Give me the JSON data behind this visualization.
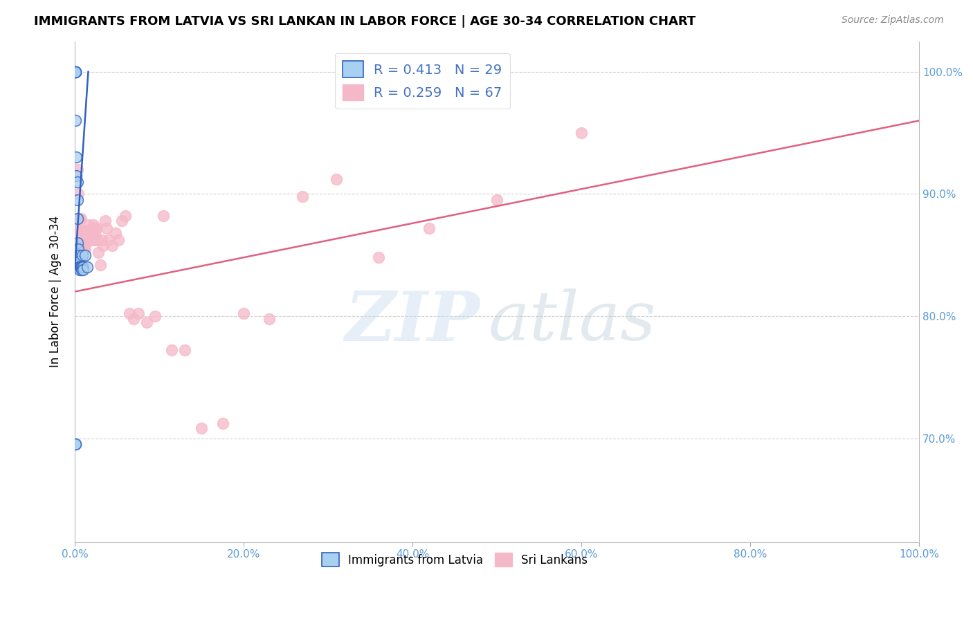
{
  "title": "IMMIGRANTS FROM LATVIA VS SRI LANKAN IN LABOR FORCE | AGE 30-34 CORRELATION CHART",
  "source": "Source: ZipAtlas.com",
  "ylabel": "In Labor Force | Age 30-34",
  "y_ticks": [
    0.7,
    0.8,
    0.9,
    1.0
  ],
  "y_tick_labels": [
    "70.0%",
    "80.0%",
    "90.0%",
    "100.0%"
  ],
  "x_ticks": [
    0.0,
    0.2,
    0.4,
    0.6,
    0.8,
    1.0
  ],
  "xlim": [
    0.0,
    1.0
  ],
  "ylim": [
    0.615,
    1.025
  ],
  "color_latvia": "#A8D0F0",
  "color_srilanka": "#F5B8C8",
  "color_line_latvia": "#3060C0",
  "color_line_srilanka": "#E06080",
  "watermark_zip": "ZIP",
  "watermark_atlas": "atlas",
  "latvia_x": [
    0.001,
    0.001,
    0.001,
    0.001,
    0.001,
    0.002,
    0.002,
    0.003,
    0.003,
    0.003,
    0.003,
    0.004,
    0.004,
    0.005,
    0.005,
    0.005,
    0.006,
    0.006,
    0.007,
    0.007,
    0.008,
    0.008,
    0.009,
    0.01,
    0.01,
    0.012,
    0.015,
    0.001,
    0.001
  ],
  "latvia_y": [
    1.0,
    1.0,
    1.0,
    1.0,
    0.96,
    0.93,
    0.915,
    0.91,
    0.895,
    0.88,
    0.86,
    0.855,
    0.845,
    0.85,
    0.845,
    0.84,
    0.84,
    0.838,
    0.84,
    0.84,
    0.84,
    0.838,
    0.85,
    0.84,
    0.838,
    0.85,
    0.84,
    0.695,
    0.695
  ],
  "srilanka_x": [
    0.001,
    0.001,
    0.002,
    0.003,
    0.004,
    0.005,
    0.005,
    0.006,
    0.006,
    0.006,
    0.007,
    0.007,
    0.008,
    0.008,
    0.009,
    0.009,
    0.01,
    0.01,
    0.01,
    0.011,
    0.011,
    0.012,
    0.012,
    0.012,
    0.014,
    0.014,
    0.014,
    0.016,
    0.016,
    0.018,
    0.02,
    0.022,
    0.022,
    0.024,
    0.024,
    0.026,
    0.026,
    0.028,
    0.03,
    0.032,
    0.034,
    0.036,
    0.038,
    0.04,
    0.044,
    0.048,
    0.052,
    0.056,
    0.06,
    0.065,
    0.07,
    0.075,
    0.085,
    0.095,
    0.105,
    0.115,
    0.13,
    0.15,
    0.175,
    0.2,
    0.23,
    0.27,
    0.31,
    0.36,
    0.42,
    0.5,
    0.6
  ],
  "srilanka_y": [
    1.0,
    1.0,
    0.87,
    0.92,
    0.9,
    0.88,
    0.87,
    0.88,
    0.87,
    0.85,
    0.88,
    0.86,
    0.87,
    0.86,
    0.86,
    0.85,
    0.87,
    0.86,
    0.855,
    0.86,
    0.855,
    0.87,
    0.865,
    0.855,
    0.87,
    0.87,
    0.86,
    0.875,
    0.87,
    0.87,
    0.868,
    0.875,
    0.862,
    0.872,
    0.868,
    0.872,
    0.862,
    0.852,
    0.842,
    0.862,
    0.858,
    0.878,
    0.872,
    0.862,
    0.858,
    0.868,
    0.862,
    0.878,
    0.882,
    0.802,
    0.798,
    0.802,
    0.795,
    0.8,
    0.882,
    0.772,
    0.772,
    0.708,
    0.712,
    0.802,
    0.798,
    0.898,
    0.912,
    0.848,
    0.872,
    0.895,
    0.95
  ],
  "latvia_line_x": [
    0.0,
    0.016
  ],
  "latvia_line_y": [
    0.838,
    1.0
  ],
  "srilanka_line_x": [
    0.0,
    1.0
  ],
  "srilanka_line_y": [
    0.82,
    0.96
  ]
}
